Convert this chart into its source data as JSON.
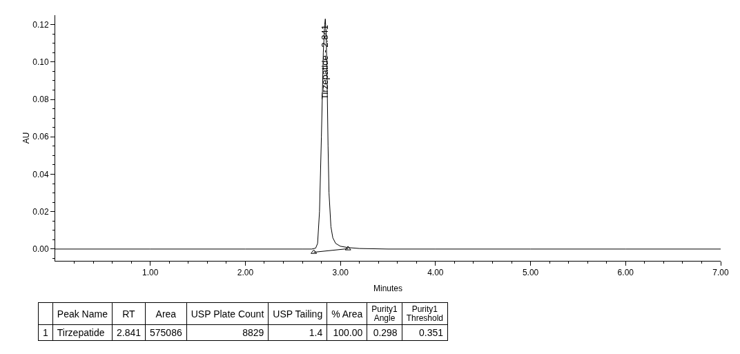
{
  "chart_data": [
    {
      "type": "line",
      "xlabel": "Minutes",
      "ylabel": "AU",
      "series": [
        {
          "color": "#000000",
          "x": [
            0,
            1,
            2,
            2.6,
            2.7,
            2.74,
            2.76,
            2.78,
            2.8,
            2.82,
            2.835,
            2.841,
            2.85,
            2.86,
            2.87,
            2.88,
            2.9,
            2.92,
            2.95,
            3.0,
            3.08,
            3.2,
            3.5,
            4,
            5,
            6,
            7
          ],
          "values": [
            0,
            0,
            0,
            0,
            0,
            0.0005,
            0.003,
            0.02,
            0.06,
            0.105,
            0.12,
            0.123,
            0.115,
            0.09,
            0.055,
            0.03,
            0.012,
            0.006,
            0.003,
            0.0015,
            0.0008,
            0.0003,
            0,
            0,
            0,
            0,
            0
          ]
        },
        {
          "type": "line",
          "marker": "triangle",
          "color": "#000000",
          "x": [
            2.72,
            3.08
          ],
          "values": [
            -0.0017,
            0.0002
          ]
        }
      ],
      "annotations": [
        {
          "text": "Tirzepatide - 2.841",
          "x": 2.841,
          "y": 0.1
        }
      ],
      "xlim": [
        0,
        7
      ],
      "ylim": [
        -0.0063,
        0.125
      ],
      "xticks": [
        {
          "value": 1,
          "label": "1.00"
        },
        {
          "value": 2,
          "label": "2.00"
        },
        {
          "value": 3,
          "label": "3.00"
        },
        {
          "value": 4,
          "label": "4.00"
        },
        {
          "value": 5,
          "label": "5.00"
        },
        {
          "value": 6,
          "label": "6.00"
        },
        {
          "value": 7,
          "label": "7.00"
        },
        {
          "value": 0.2,
          "label": null
        },
        {
          "value": 0.4,
          "label": null
        },
        {
          "value": 0.6,
          "label": null
        },
        {
          "value": 0.8,
          "label": null
        },
        {
          "value": 1.2,
          "label": null
        },
        {
          "value": 1.4,
          "label": null
        },
        {
          "value": 1.6,
          "label": null
        },
        {
          "value": 1.8,
          "label": null
        },
        {
          "value": 2.2,
          "label": null
        },
        {
          "value": 2.4,
          "label": null
        },
        {
          "value": 2.6,
          "label": null
        },
        {
          "value": 2.8,
          "label": null
        },
        {
          "value": 3.2,
          "label": null
        },
        {
          "value": 3.4,
          "label": null
        },
        {
          "value": 3.6,
          "label": null
        },
        {
          "value": 3.8,
          "label": null
        },
        {
          "value": 4.2,
          "label": null
        },
        {
          "value": 4.4,
          "label": null
        },
        {
          "value": 4.6,
          "label": null
        },
        {
          "value": 4.8,
          "label": null
        },
        {
          "value": 5.2,
          "label": null
        },
        {
          "value": 5.4,
          "label": null
        },
        {
          "value": 5.6,
          "label": null
        },
        {
          "value": 5.8,
          "label": null
        },
        {
          "value": 6.2,
          "label": null
        },
        {
          "value": 6.4,
          "label": null
        },
        {
          "value": 6.6,
          "label": null
        },
        {
          "value": 6.8,
          "label": null
        }
      ],
      "yticks": [
        {
          "value": 0,
          "label": "0.00"
        },
        {
          "value": 0.02,
          "label": "0.02"
        },
        {
          "value": 0.04,
          "label": "0.04"
        },
        {
          "value": 0.06,
          "label": "0.06"
        },
        {
          "value": 0.08,
          "label": "0.08"
        },
        {
          "value": 0.1,
          "label": "0.10"
        },
        {
          "value": 0.12,
          "label": "0.12"
        },
        {
          "value": -0.005,
          "label": null
        },
        {
          "value": 0.005,
          "label": null
        },
        {
          "value": 0.01,
          "label": null
        },
        {
          "value": 0.015,
          "label": null
        },
        {
          "value": 0.025,
          "label": null
        },
        {
          "value": 0.03,
          "label": null
        },
        {
          "value": 0.035,
          "label": null
        },
        {
          "value": 0.045,
          "label": null
        },
        {
          "value": 0.05,
          "label": null
        },
        {
          "value": 0.055,
          "label": null
        },
        {
          "value": 0.065,
          "label": null
        },
        {
          "value": 0.07,
          "label": null
        },
        {
          "value": 0.075,
          "label": null
        },
        {
          "value": 0.085,
          "label": null
        },
        {
          "value": 0.09,
          "label": null
        },
        {
          "value": 0.095,
          "label": null
        },
        {
          "value": 0.105,
          "label": null
        },
        {
          "value": 0.11,
          "label": null
        },
        {
          "value": 0.115,
          "label": null
        }
      ]
    },
    {
      "type": "other",
      "categories": [
        null,
        "Peak Name",
        "RT",
        "Area",
        "USP Plate Count",
        "USP Tailing",
        "% Area",
        "Purity1 Angle",
        "Purity1 Threshold"
      ],
      "annotations": [
        "1",
        "Tirzepatide",
        "2.841",
        "575086",
        "8829",
        "1.4",
        "100.00",
        "0.298",
        "0.351"
      ]
    }
  ]
}
